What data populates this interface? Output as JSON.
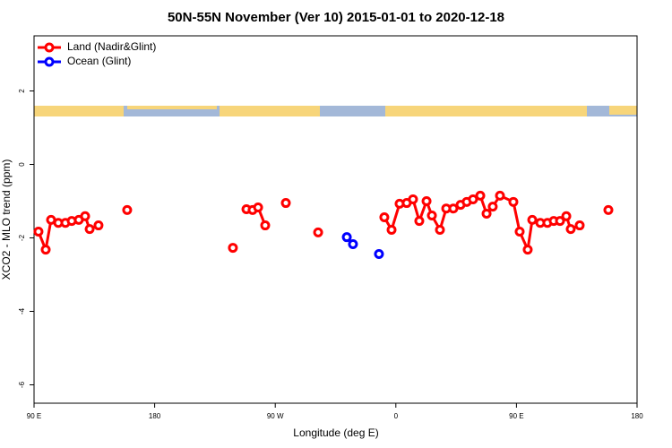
{
  "chart_data": {
    "type": "line",
    "title": "50N-55N November (Ver 10)   2015-01-01 to 2020-12-18",
    "xlabel": "Longitude (deg E)",
    "ylabel": "XCO2 - MLO trend (ppm)",
    "xlim": [
      90,
      540
    ],
    "ylim": [
      -6.5,
      3.5
    ],
    "xticks": [
      {
        "value": 90,
        "label": "90 E"
      },
      {
        "value": 180,
        "label": "180"
      },
      {
        "value": 270,
        "label": "90 W"
      },
      {
        "value": 360,
        "label": "0"
      },
      {
        "value": 450,
        "label": "90 E"
      },
      {
        "value": 540,
        "label": "180"
      }
    ],
    "yticks": [
      -6,
      -4,
      -2,
      0,
      2
    ],
    "legend": "topleft",
    "series": [
      {
        "name": "Land (Nadir&Glint)",
        "color": "#ff0000",
        "x": [
          93.3,
          98.7,
          102.7,
          108.1,
          113.4,
          118.1,
          123.4,
          128.1,
          131.5,
          138.1,
          null,
          159.5,
          null,
          238.4,
          null,
          248.5,
          253.1,
          257.2,
          262.5,
          null,
          277.9,
          null,
          302,
          null,
          351.4,
          356.8,
          362.8,
          368.1,
          372.8,
          377.5,
          382.9,
          386.9,
          392.9,
          397.6,
          402.9,
          408.3,
          412.9,
          417.6,
          423,
          427.7,
          432.3,
          437.7,
          447.7,
          452.4,
          458.4,
          461.8,
          467.8,
          473.1,
          477.8,
          482.5,
          487.2,
          490.5,
          497.2,
          null,
          518.6
        ],
        "values": [
          -1.83,
          -2.32,
          -1.51,
          -1.59,
          -1.59,
          -1.54,
          -1.51,
          -1.41,
          -1.76,
          -1.66,
          null,
          -1.24,
          null,
          -2.27,
          null,
          -1.22,
          -1.24,
          -1.17,
          -1.66,
          null,
          -1.05,
          null,
          -1.85,
          null,
          -1.44,
          -1.78,
          -1.07,
          -1.05,
          -0.95,
          -1.54,
          -1.0,
          -1.39,
          -1.78,
          -1.2,
          -1.2,
          -1.1,
          -1.02,
          -0.95,
          -0.85,
          -1.34,
          -1.15,
          -0.85,
          -1.02,
          -1.83,
          -2.32,
          -1.51,
          -1.59,
          -1.59,
          -1.54,
          -1.54,
          -1.41,
          -1.76,
          -1.66,
          null,
          -1.24
        ]
      },
      {
        "name": "Ocean (Glint)",
        "color": "#0000ff",
        "x": [
          323.4,
          null,
          328,
          null,
          347.4
        ],
        "values": [
          -1.98,
          null,
          -2.17,
          null,
          -2.44
        ]
      }
    ]
  }
}
